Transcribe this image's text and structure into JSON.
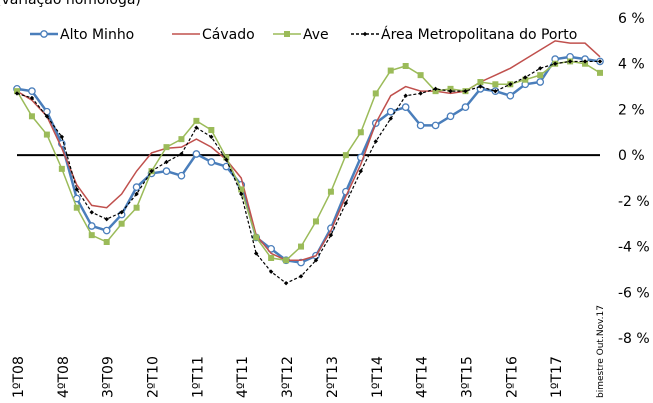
{
  "chart_data": {
    "type": "line",
    "title": "(variação homóloga)",
    "categories": [
      "1ºT08",
      null,
      null,
      "4ºT08",
      null,
      null,
      "3ºT09",
      null,
      null,
      "2ºT10",
      null,
      null,
      "1ºT11",
      null,
      null,
      "4ºT11",
      null,
      null,
      "3ºT12",
      null,
      null,
      "2ºT13",
      null,
      null,
      "1ºT14",
      null,
      null,
      "4ºT14",
      null,
      null,
      "3ºT15",
      null,
      null,
      "2ºT16",
      null,
      null,
      "1ºT17",
      null,
      null,
      "bimestre Out.Nov.17"
    ],
    "series": [
      {
        "name": "Alto Minho",
        "color": "#4a7ebb",
        "marker": "circle",
        "values": [
          2.9,
          2.8,
          1.9,
          0.5,
          -1.9,
          -3.1,
          -3.3,
          -2.6,
          -1.4,
          -0.8,
          -0.7,
          -0.9,
          0.05,
          -0.3,
          -0.5,
          -1.3,
          -3.6,
          -4.1,
          -4.6,
          -4.7,
          -4.4,
          -3.2,
          -1.6,
          -0.1,
          1.4,
          1.9,
          2.1,
          1.3,
          1.3,
          1.7,
          2.1,
          2.9,
          2.8,
          2.6,
          3.1,
          3.2,
          4.2,
          4.3,
          4.2,
          4.1
        ]
      },
      {
        "name": "Cávado",
        "color": "#c0504d",
        "marker": "none",
        "values": [
          2.8,
          2.4,
          1.7,
          0.3,
          -1.3,
          -2.2,
          -2.3,
          -1.7,
          -0.7,
          0.1,
          0.3,
          0.35,
          0.7,
          0.35,
          -0.2,
          -1.0,
          -3.5,
          -4.3,
          -4.6,
          -4.6,
          -4.4,
          -3.3,
          -1.8,
          -0.4,
          1.4,
          2.6,
          3.0,
          2.8,
          2.8,
          2.7,
          2.8,
          3.2,
          3.5,
          3.8,
          4.2,
          4.6,
          5.0,
          4.9,
          4.9,
          4.3
        ]
      },
      {
        "name": "Ave",
        "color": "#9bbb59",
        "marker": "square",
        "values": [
          2.8,
          1.7,
          0.9,
          -0.6,
          -2.3,
          -3.5,
          -3.8,
          -3.0,
          -2.3,
          -0.7,
          0.35,
          0.7,
          1.5,
          1.1,
          -0.1,
          -1.5,
          -3.6,
          -4.5,
          -4.6,
          -4.0,
          -2.9,
          -1.6,
          0.0,
          1.0,
          2.7,
          3.7,
          3.9,
          3.5,
          2.8,
          2.9,
          2.8,
          3.2,
          3.1,
          3.1,
          3.3,
          3.5,
          4.0,
          4.1,
          4.0,
          3.6
        ]
      },
      {
        "name": "Área Metropolitana do Porto",
        "color": "#000000",
        "marker": "diamond",
        "dashed": true,
        "values": [
          2.7,
          2.5,
          1.7,
          0.8,
          -1.5,
          -2.5,
          -2.8,
          -2.5,
          -1.7,
          -0.7,
          -0.3,
          0.05,
          1.2,
          0.8,
          -0.2,
          -1.7,
          -4.3,
          -5.1,
          -5.6,
          -5.3,
          -4.6,
          -3.5,
          -2.1,
          -0.7,
          0.6,
          1.6,
          2.6,
          2.7,
          2.9,
          2.8,
          2.8,
          3.0,
          2.8,
          3.1,
          3.4,
          3.8,
          4.0,
          4.1,
          4.1,
          4.1
        ]
      }
    ],
    "ylim": [
      -8,
      6
    ],
    "yticks": [
      {
        "value": 6,
        "label": "6 %"
      },
      {
        "value": 4,
        "label": "4 %"
      },
      {
        "value": 2,
        "label": "2 %"
      },
      {
        "value": 0,
        "label": "0 %"
      },
      {
        "value": -2,
        "label": "-2 %"
      },
      {
        "value": -4,
        "label": "-4 %"
      },
      {
        "value": -6,
        "label": "-6 %"
      },
      {
        "value": -8,
        "label": "-8 %"
      }
    ],
    "zero_line": true,
    "grid": false,
    "legend": "top"
  }
}
